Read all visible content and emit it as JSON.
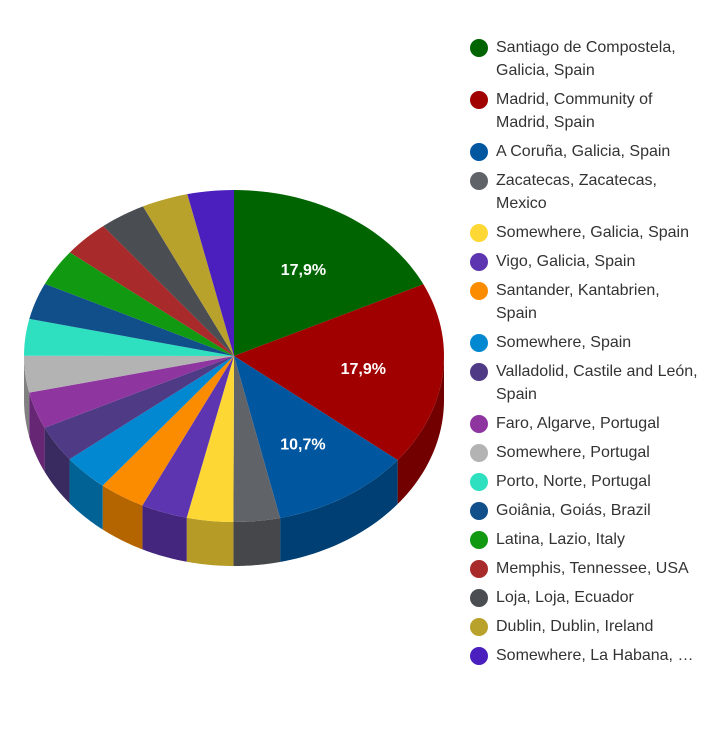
{
  "chart_data": {
    "type": "pie",
    "style": "3d",
    "legend_position": "right",
    "slices": [
      {
        "label": "Santiago de Compostela, Galicia, Spain",
        "value": 17.9,
        "value_label": "17,9%",
        "color": "#006400"
      },
      {
        "label": "Madrid, Community of Madrid, Spain",
        "value": 17.9,
        "value_label": "17,9%",
        "color": "#a00000"
      },
      {
        "label": "A Coruña, Galicia, Spain",
        "value": 10.7,
        "value_label": "10,7%",
        "color": "#0057a0"
      },
      {
        "label": "Zacatecas, Zacatecas, Mexico",
        "value": 3.57,
        "value_label": "",
        "color": "#606368"
      },
      {
        "label": "Somewhere, Galicia, Spain",
        "value": 3.57,
        "value_label": "",
        "color": "#fdd835"
      },
      {
        "label": "Vigo, Galicia, Spain",
        "value": 3.57,
        "value_label": "",
        "color": "#5e35b1"
      },
      {
        "label": "Santander, Kantabrien, Spain",
        "value": 3.57,
        "value_label": "",
        "color": "#fb8c00"
      },
      {
        "label": "Somewhere, Spain",
        "value": 3.57,
        "value_label": "",
        "color": "#0288d1"
      },
      {
        "label": "Valladolid, Castile and León, Spain",
        "value": 3.57,
        "value_label": "",
        "color": "#4f3a85"
      },
      {
        "label": "Faro, Algarve, Portugal",
        "value": 3.57,
        "value_label": "",
        "color": "#8e35a0"
      },
      {
        "label": "Somewhere, Portugal",
        "value": 3.57,
        "value_label": "",
        "color": "#b3b3b3"
      },
      {
        "label": "Porto, Norte, Portugal",
        "value": 3.57,
        "value_label": "",
        "color": "#2ee0c0"
      },
      {
        "label": "Goiânia, Goiás, Brazil",
        "value": 3.57,
        "value_label": "",
        "color": "#114f8a"
      },
      {
        "label": "Latina, Lazio, Italy",
        "value": 3.57,
        "value_label": "",
        "color": "#119a11"
      },
      {
        "label": "Memphis, Tennessee, USA",
        "value": 3.57,
        "value_label": "",
        "color": "#a82a2a"
      },
      {
        "label": "Loja, Loja, Ecuador",
        "value": 3.57,
        "value_label": "",
        "color": "#4a4d52"
      },
      {
        "label": "Dublin, Dublin, Ireland",
        "value": 3.57,
        "value_label": "",
        "color": "#b8a22c"
      },
      {
        "label": "Somewhere, La Habana, Cuba",
        "value": 3.57,
        "value_label": "",
        "color": "#4a1fbd"
      }
    ]
  }
}
